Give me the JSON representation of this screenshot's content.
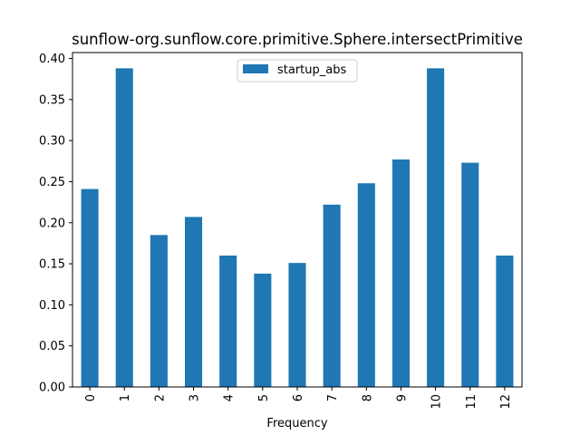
{
  "chart_data": {
    "type": "bar",
    "title": "sunflow-org.sunflow.core.primitive.Sphere.intersectPrimitive",
    "xlabel": "Frequency",
    "ylabel": "",
    "categories": [
      "0",
      "1",
      "2",
      "3",
      "4",
      "5",
      "6",
      "7",
      "8",
      "9",
      "10",
      "11",
      "12"
    ],
    "series": [
      {
        "name": "startup_abs",
        "color": "#1f77b4",
        "values": [
          0.241,
          0.388,
          0.185,
          0.207,
          0.16,
          0.138,
          0.151,
          0.222,
          0.248,
          0.277,
          0.388,
          0.273,
          0.16
        ]
      }
    ],
    "ylim": [
      0,
      0.4
    ],
    "yticks": [
      0.0,
      0.05,
      0.1,
      0.15,
      0.2,
      0.25,
      0.3,
      0.35,
      0.4
    ],
    "ytick_labels": [
      "0.00",
      "0.05",
      "0.10",
      "0.15",
      "0.20",
      "0.25",
      "0.30",
      "0.35",
      "0.40"
    ],
    "grid": false,
    "legend_position": "top-center",
    "xtick_rotation": "vertical"
  }
}
